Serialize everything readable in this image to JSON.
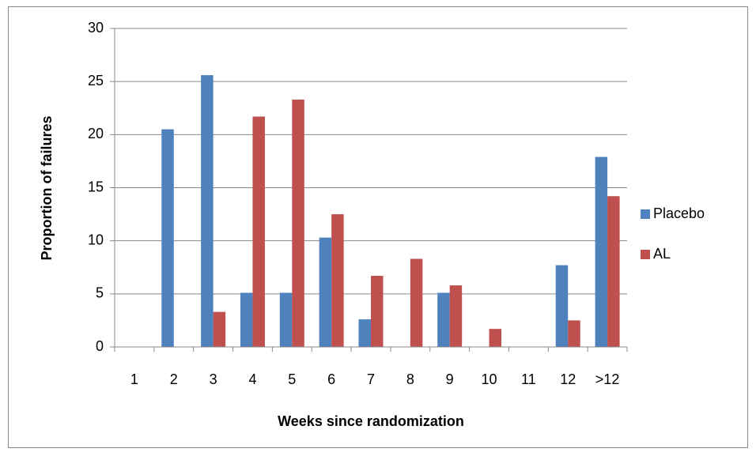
{
  "chart_data": {
    "type": "bar",
    "x_label": "Weeks since randomization",
    "y_label": "Proportion of failures",
    "categories": [
      "1",
      "2",
      "3",
      "4",
      "5",
      "6",
      "7",
      "8",
      "9",
      "10",
      "11",
      "12",
      ">12"
    ],
    "series": [
      {
        "name": "Placebo",
        "color": "#4f81bd",
        "values": [
          0,
          20.5,
          25.6,
          5.1,
          5.1,
          10.3,
          2.6,
          0,
          5.1,
          0,
          0,
          7.7,
          17.9
        ]
      },
      {
        "name": "AL",
        "color": "#c0504d",
        "values": [
          0,
          0,
          3.3,
          21.7,
          23.3,
          12.5,
          6.7,
          8.3,
          5.8,
          1.7,
          0,
          2.5,
          14.2
        ]
      }
    ],
    "ylim": [
      0,
      30
    ],
    "yticks": [
      0,
      5,
      10,
      15,
      20,
      25,
      30
    ],
    "grid": true,
    "legend": "right"
  }
}
